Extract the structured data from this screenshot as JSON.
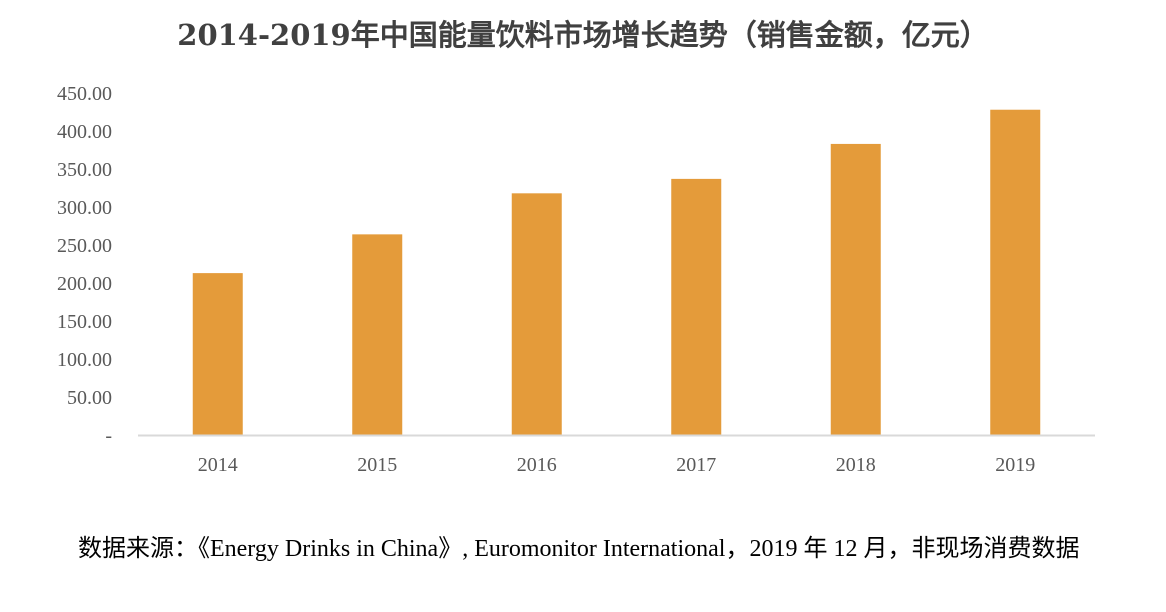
{
  "chart_data": {
    "type": "bar",
    "title": "2014-2019年中国能量饮料市场增长趋势（销售金额，亿元）",
    "categories": [
      "2014",
      "2015",
      "2016",
      "2017",
      "2018",
      "2019"
    ],
    "values": [
      213,
      264,
      318,
      337,
      383,
      428
    ],
    "ylim": [
      0,
      450
    ],
    "yticks": [
      "-",
      "50.00",
      "100.00",
      "150.00",
      "200.00",
      "250.00",
      "300.00",
      "350.00",
      "400.00",
      "450.00"
    ],
    "xlabel": "",
    "ylabel": "",
    "grid": false,
    "bar_color": "#E49B3A",
    "axis_color": "#D9D9D9"
  },
  "source_note": "数据来源：《Energy Drinks in China》, Euromonitor International，2019 年 12 月，非现场消费数据"
}
